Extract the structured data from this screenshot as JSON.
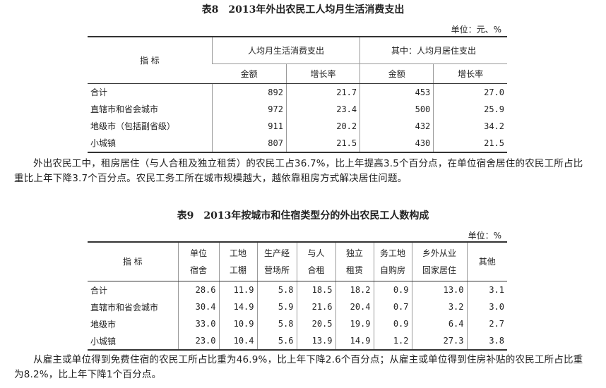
{
  "table8": {
    "title": "表8　2013年外出农民工人均月生活消费支出",
    "unit": "单位：元、%",
    "header": {
      "indicator": "指 标",
      "group1": "人均月生活消费支出",
      "group2": "其中：人均月居住支出",
      "sub": [
        "金额",
        "增长率",
        "金额",
        "增长率"
      ]
    },
    "rows": [
      {
        "label": "合计",
        "values": [
          "892",
          "21.7",
          "453",
          "27.0"
        ]
      },
      {
        "label": "直辖市和省会城市",
        "values": [
          "972",
          "23.4",
          "500",
          "25.9"
        ]
      },
      {
        "label": "地级市（包括副省级）",
        "values": [
          "911",
          "20.2",
          "432",
          "34.2"
        ]
      },
      {
        "label": "小城镇",
        "values": [
          "807",
          "21.5",
          "430",
          "21.5"
        ]
      }
    ]
  },
  "paragraph1": "外出农民工中，租房居住（与人合租及独立租赁）的农民工占36.7%，比上年提高3.5个百分点，在单位宿舍居住的农民工所占比重比上年下降3.7个百分点。农民工务工所在城市规模越大，越依靠租房方式解决居住问题。",
  "table9": {
    "title": "表9　2013年按城市和住宿类型分的外出农民工人数构成",
    "unit": "单位：%",
    "header": {
      "indicator": "指 标",
      "columns": [
        [
          "单位",
          "宿舍"
        ],
        [
          "工地",
          "工棚"
        ],
        [
          "生产经",
          "营场所"
        ],
        [
          "与人",
          "合租"
        ],
        [
          "独立",
          "租赁"
        ],
        [
          "务工地",
          "自购房"
        ],
        [
          "乡外从业",
          "回家居住"
        ],
        [
          "其他",
          ""
        ]
      ]
    },
    "rows": [
      {
        "label": "合计",
        "values": [
          "28.6",
          "11.9",
          "5.8",
          "18.5",
          "18.2",
          "0.9",
          "13.0",
          "3.1"
        ]
      },
      {
        "label": "直辖市和省会城市",
        "values": [
          "30.4",
          "14.9",
          "5.9",
          "21.6",
          "20.4",
          "0.7",
          "3.2",
          "3.0"
        ]
      },
      {
        "label": "地级市",
        "values": [
          "33.0",
          "10.9",
          "5.8",
          "20.5",
          "19.9",
          "0.9",
          "6.4",
          "2.7"
        ]
      },
      {
        "label": "小城镇",
        "values": [
          "23.0",
          "10.4",
          "5.6",
          "13.9",
          "14.9",
          "1.2",
          "27.3",
          "3.8"
        ]
      }
    ]
  },
  "paragraph2": "从雇主或单位得到免费住宿的农民工所占比重为46.9%，比上年下降2.6个百分点；从雇主或单位得到住房补贴的农民工所占比重为8.2%，比上年下降1个百分点。"
}
